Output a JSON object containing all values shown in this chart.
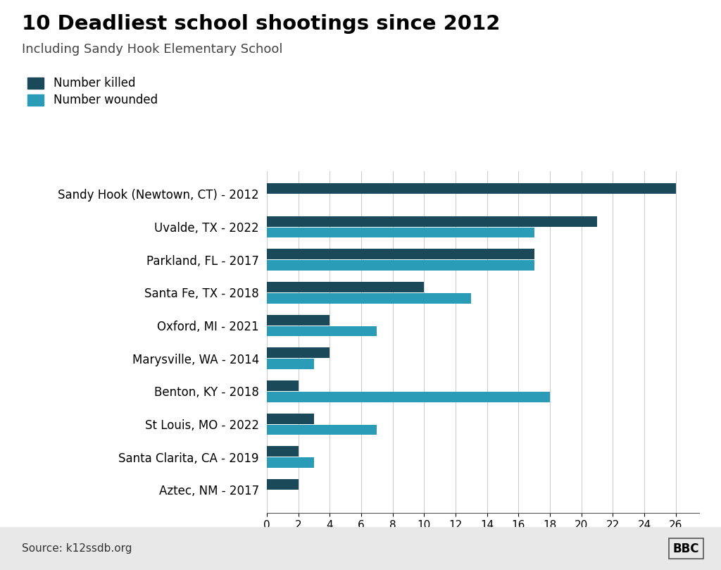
{
  "title": "10 Deadliest school shootings since 2012",
  "subtitle": "Including Sandy Hook Elementary School",
  "source": "Source: k12ssdb.org",
  "bbc_label": "BBC",
  "legend_killed": "Number killed",
  "legend_wounded": "Number wounded",
  "categories": [
    "Sandy Hook (Newtown, CT) - 2012",
    "Uvalde, TX - 2022",
    "Parkland, FL - 2017",
    "Santa Fe, TX - 2018",
    "Oxford, MI - 2021",
    "Marysville, WA - 2014",
    "Benton, KY - 2018",
    "St Louis, MO - 2022",
    "Santa Clarita, CA - 2019",
    "Aztec, NM - 2017"
  ],
  "killed": [
    26,
    21,
    17,
    10,
    4,
    4,
    2,
    3,
    2,
    2
  ],
  "wounded": [
    0,
    17,
    17,
    13,
    7,
    3,
    18,
    7,
    3,
    0
  ],
  "color_killed": "#1a4a5a",
  "color_wounded": "#2b9cb8",
  "background_color": "#ffffff",
  "footer_bg": "#e8e8e8",
  "xlim": [
    0,
    27.5
  ],
  "xticks": [
    0,
    2,
    4,
    6,
    8,
    10,
    12,
    14,
    16,
    18,
    20,
    22,
    24,
    26
  ],
  "title_fontsize": 21,
  "subtitle_fontsize": 13,
  "label_fontsize": 12,
  "tick_fontsize": 11,
  "bar_height": 0.32,
  "bar_gap": 0.02
}
